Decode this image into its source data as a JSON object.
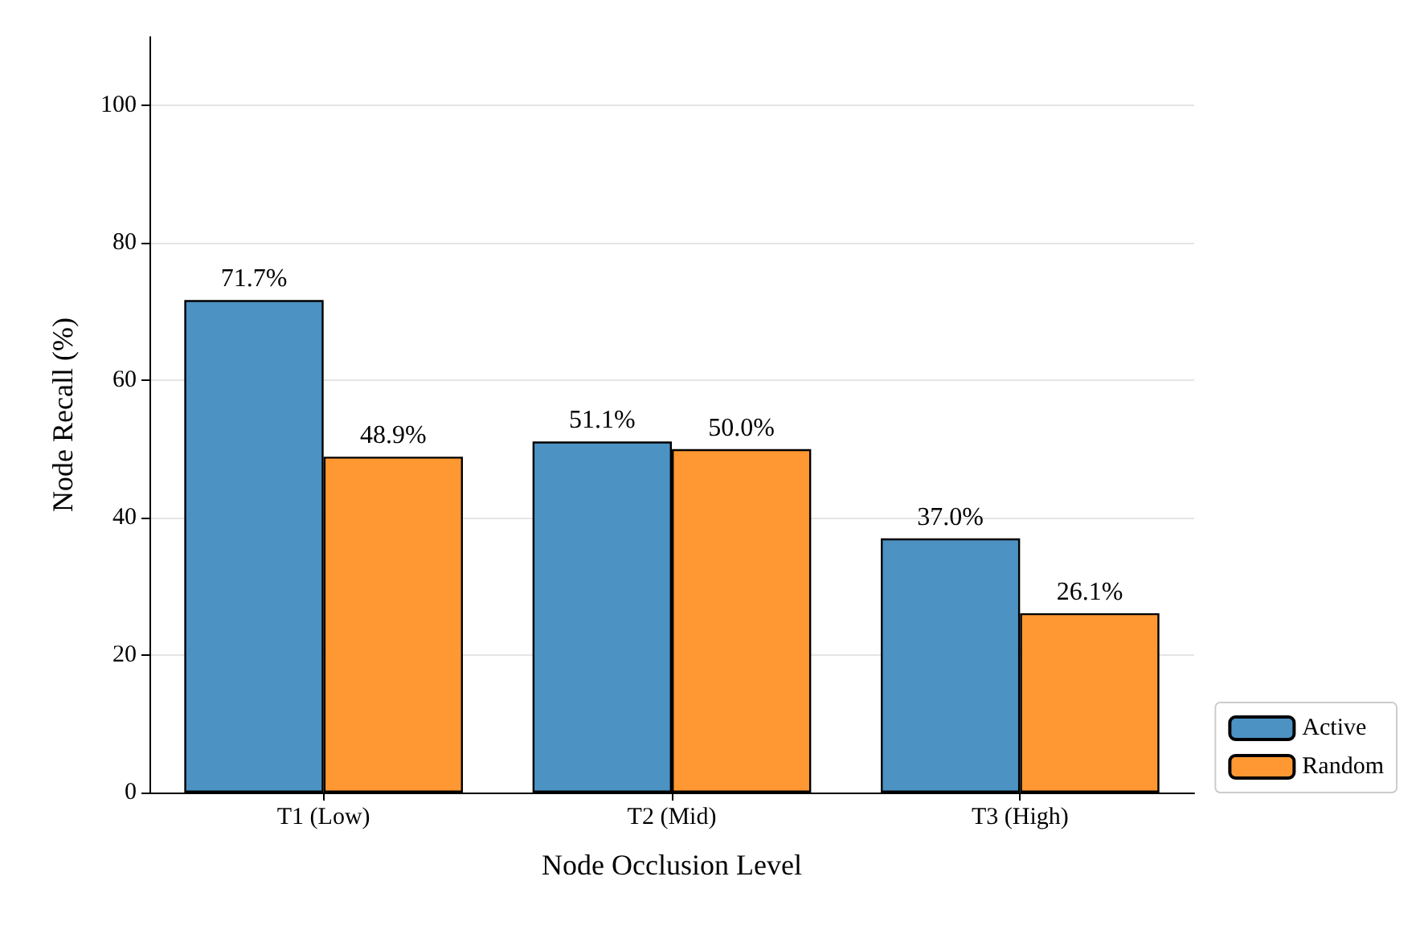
{
  "chart_data": {
    "type": "bar",
    "xlabel": "Node Occlusion Level",
    "ylabel": "Node Recall (%)",
    "categories": [
      "T1 (Low)",
      "T2 (Mid)",
      "T3 (High)"
    ],
    "series": [
      {
        "name": "Active",
        "color": "#4c92c3",
        "values": [
          71.7,
          51.1,
          37.0
        ],
        "value_labels": [
          "71.7%",
          "51.1%",
          "37.0%"
        ]
      },
      {
        "name": "Random",
        "color": "#ff9832",
        "values": [
          48.9,
          50.0,
          26.1
        ],
        "value_labels": [
          "48.9%",
          "50.0%",
          "26.1%"
        ]
      }
    ],
    "ylim": [
      0,
      110
    ],
    "yticks": [
      0,
      20,
      40,
      60,
      80,
      100
    ],
    "grid": "y",
    "legend": "bottom right"
  }
}
